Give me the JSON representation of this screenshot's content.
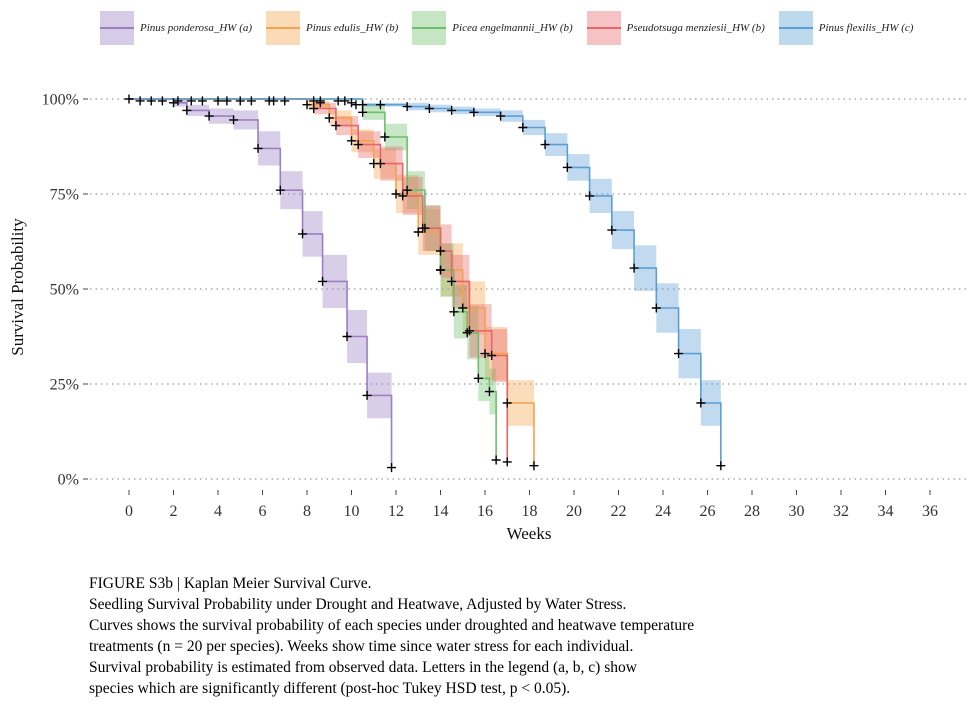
{
  "chart_data": {
    "type": "line",
    "subtype": "kaplan-meier step survival curves with confidence bands",
    "xlabel": "Weeks",
    "ylabel": "Survival Probability",
    "xlim": [
      0,
      36
    ],
    "ylim": [
      0,
      1
    ],
    "x_ticks": [
      "0",
      "2",
      "4",
      "6",
      "8",
      "10",
      "12",
      "14",
      "16",
      "18",
      "20",
      "22",
      "24",
      "26",
      "28",
      "30",
      "32",
      "34",
      "36"
    ],
    "y_ticks": [
      "0%",
      "25%",
      "50%",
      "75%",
      "100%"
    ],
    "y_tick_values": [
      0,
      0.25,
      0.5,
      0.75,
      1.0
    ],
    "grid": "horizontal dotted",
    "legend_position": "top",
    "series": [
      {
        "name": "Pinus ponderosa_HW (a)",
        "color": "#9b7fc2",
        "steps": [
          [
            0,
            1.0
          ],
          [
            2.0,
            0.99
          ],
          [
            2.6,
            0.97
          ],
          [
            3.6,
            0.955
          ],
          [
            4.7,
            0.945
          ],
          [
            5.8,
            0.87
          ],
          [
            6.8,
            0.76
          ],
          [
            7.8,
            0.645
          ],
          [
            8.7,
            0.52
          ],
          [
            9.8,
            0.375
          ],
          [
            10.7,
            0.22
          ],
          [
            11.8,
            0.03
          ]
        ],
        "band_half_width": [
          0,
          0.01,
          0.015,
          0.02,
          0.025,
          0.045,
          0.05,
          0.06,
          0.07,
          0.07,
          0.06,
          0
        ],
        "censored": [
          [
            0,
            1.0
          ],
          [
            0.5,
            0.995
          ],
          [
            1.0,
            0.995
          ],
          [
            1.5,
            0.995
          ],
          [
            2.2,
            0.995
          ],
          [
            2.8,
            0.995
          ],
          [
            3.3,
            0.995
          ],
          [
            4.0,
            0.995
          ],
          [
            4.4,
            0.995
          ],
          [
            5.0,
            0.995
          ],
          [
            5.5,
            0.995
          ],
          [
            6.3,
            0.995
          ]
        ],
        "events": [
          [
            2.0,
            0.99
          ],
          [
            2.6,
            0.97
          ],
          [
            3.6,
            0.955
          ],
          [
            4.7,
            0.945
          ],
          [
            5.8,
            0.87
          ],
          [
            6.8,
            0.76
          ],
          [
            7.8,
            0.645
          ],
          [
            8.7,
            0.52
          ],
          [
            9.8,
            0.375
          ],
          [
            10.7,
            0.22
          ],
          [
            11.8,
            0.03
          ]
        ]
      },
      {
        "name": "Pinus edulis_HW (b)",
        "color": "#f5a24b",
        "steps": [
          [
            0,
            1.0
          ],
          [
            8.0,
            0.985
          ],
          [
            9.0,
            0.95
          ],
          [
            10.0,
            0.89
          ],
          [
            11.0,
            0.83
          ],
          [
            12.0,
            0.75
          ],
          [
            13.0,
            0.65
          ],
          [
            14.0,
            0.55
          ],
          [
            15.0,
            0.45
          ],
          [
            16.0,
            0.33
          ],
          [
            17.0,
            0.2
          ],
          [
            18.2,
            0.035
          ]
        ],
        "band_half_width": [
          0,
          0.01,
          0.02,
          0.03,
          0.04,
          0.05,
          0.06,
          0.07,
          0.07,
          0.07,
          0.06,
          0
        ],
        "censored": [
          [
            7.0,
            0.995
          ],
          [
            8.3,
            0.995
          ],
          [
            9.7,
            0.995
          ]
        ],
        "events": [
          [
            8.0,
            0.985
          ],
          [
            9.0,
            0.95
          ],
          [
            10.0,
            0.89
          ],
          [
            11.0,
            0.83
          ],
          [
            12.0,
            0.75
          ],
          [
            13.0,
            0.65
          ],
          [
            14.0,
            0.55
          ],
          [
            15.0,
            0.45
          ],
          [
            16.0,
            0.33
          ],
          [
            17.0,
            0.2
          ],
          [
            18.2,
            0.035
          ]
        ]
      },
      {
        "name": "Picea engelmannii_HW (b)",
        "color": "#6dbf6a",
        "steps": [
          [
            0,
            1.0
          ],
          [
            10.5,
            0.965
          ],
          [
            11.5,
            0.9
          ],
          [
            12.5,
            0.76
          ],
          [
            13.3,
            0.66
          ],
          [
            14.0,
            0.55
          ],
          [
            14.6,
            0.44
          ],
          [
            15.2,
            0.385
          ],
          [
            15.7,
            0.265
          ],
          [
            16.2,
            0.23
          ],
          [
            16.5,
            0.05
          ]
        ],
        "band_half_width": [
          0,
          0.02,
          0.035,
          0.05,
          0.06,
          0.07,
          0.07,
          0.07,
          0.06,
          0.06,
          0
        ],
        "censored": [
          [
            8.6,
            0.995
          ],
          [
            9.4,
            0.995
          ],
          [
            10.2,
            0.985
          ]
        ],
        "events": [
          [
            10.5,
            0.965
          ],
          [
            11.5,
            0.9
          ],
          [
            12.5,
            0.76
          ],
          [
            13.3,
            0.66
          ],
          [
            14.0,
            0.55
          ],
          [
            14.6,
            0.44
          ],
          [
            15.2,
            0.385
          ],
          [
            15.7,
            0.265
          ],
          [
            16.2,
            0.23
          ],
          [
            16.5,
            0.05
          ]
        ]
      },
      {
        "name": "Pseudotsuga menziesii_HW (b)",
        "color": "#e8666a",
        "steps": [
          [
            0,
            1.0
          ],
          [
            8.3,
            0.975
          ],
          [
            9.3,
            0.93
          ],
          [
            10.3,
            0.88
          ],
          [
            11.3,
            0.83
          ],
          [
            12.3,
            0.745
          ],
          [
            13.2,
            0.66
          ],
          [
            14.0,
            0.6
          ],
          [
            14.5,
            0.52
          ],
          [
            15.3,
            0.39
          ],
          [
            16.3,
            0.325
          ],
          [
            17.0,
            0.045
          ]
        ],
        "band_half_width": [
          0,
          0.015,
          0.025,
          0.035,
          0.045,
          0.05,
          0.06,
          0.07,
          0.07,
          0.07,
          0.07,
          0
        ],
        "censored": [
          [
            6.5,
            0.995
          ],
          [
            8.6,
            0.99
          ]
        ],
        "events": [
          [
            8.3,
            0.975
          ],
          [
            9.3,
            0.93
          ],
          [
            10.3,
            0.88
          ],
          [
            11.3,
            0.83
          ],
          [
            12.3,
            0.745
          ],
          [
            13.2,
            0.66
          ],
          [
            14.0,
            0.6
          ],
          [
            14.5,
            0.52
          ],
          [
            15.3,
            0.39
          ],
          [
            16.3,
            0.325
          ],
          [
            17.0,
            0.045
          ]
        ]
      },
      {
        "name": "Pinus flexilis_HW (c)",
        "color": "#5b9fd4",
        "steps": [
          [
            0,
            1.0
          ],
          [
            10.5,
            0.985
          ],
          [
            12.5,
            0.98
          ],
          [
            13.5,
            0.975
          ],
          [
            14.5,
            0.97
          ],
          [
            15.5,
            0.965
          ],
          [
            16.7,
            0.955
          ],
          [
            17.7,
            0.925
          ],
          [
            18.7,
            0.88
          ],
          [
            19.7,
            0.82
          ],
          [
            20.7,
            0.745
          ],
          [
            21.7,
            0.655
          ],
          [
            22.7,
            0.555
          ],
          [
            23.7,
            0.45
          ],
          [
            24.7,
            0.33
          ],
          [
            25.7,
            0.2
          ],
          [
            26.6,
            0.035
          ]
        ],
        "band_half_width": [
          0,
          0.005,
          0.01,
          0.01,
          0.01,
          0.01,
          0.015,
          0.02,
          0.03,
          0.035,
          0.045,
          0.05,
          0.06,
          0.065,
          0.065,
          0.06,
          0
        ],
        "censored": [
          [
            10.0,
            0.99
          ],
          [
            11.3,
            0.985
          ]
        ],
        "events": [
          [
            10.5,
            0.985
          ],
          [
            12.5,
            0.98
          ],
          [
            13.5,
            0.975
          ],
          [
            14.5,
            0.97
          ],
          [
            15.5,
            0.965
          ],
          [
            16.7,
            0.955
          ],
          [
            17.7,
            0.925
          ],
          [
            18.7,
            0.88
          ],
          [
            19.7,
            0.82
          ],
          [
            20.7,
            0.745
          ],
          [
            21.7,
            0.655
          ],
          [
            22.7,
            0.555
          ],
          [
            23.7,
            0.45
          ],
          [
            24.7,
            0.33
          ],
          [
            25.7,
            0.2
          ],
          [
            26.6,
            0.035
          ]
        ]
      }
    ]
  },
  "caption": [
    "FIGURE S3b | Kaplan Meier Survival Curve.",
    "Seedling Survival Probability under Drought and Heatwave, Adjusted by Water Stress.",
    "Curves shows the survival probability of each species under droughted and heatwave temperature",
    "treatments (n = 20 per species). Weeks show time since water stress for each individual.",
    "Survival probability is estimated from observed data. Letters in the legend (a, b, c) show",
    "species which are significantly different (post-hoc Tukey HSD test, p < 0.05)."
  ]
}
